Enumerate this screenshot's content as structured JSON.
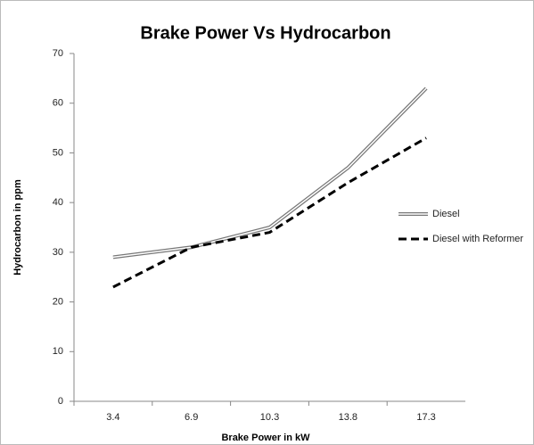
{
  "chart_data": {
    "type": "line",
    "title": "Brake Power Vs Hydrocarbon",
    "x_label": "Brake Power in kW",
    "y_label": "Hydrocarbon in ppm",
    "categories": [
      "3.4",
      "6.9",
      "10.3",
      "13.8",
      "17.3"
    ],
    "series": [
      {
        "name": "Diesel",
        "color": "#777777",
        "style": "double",
        "values": [
          29,
          31,
          35,
          47,
          63
        ]
      },
      {
        "name": "Diesel with Reformer",
        "color": "#000000",
        "style": "dashed",
        "values": [
          23,
          31,
          34,
          44,
          53
        ]
      }
    ],
    "ylim": [
      0,
      70
    ],
    "yticks": [
      0,
      10,
      20,
      30,
      40,
      50,
      60,
      70
    ],
    "grid": false,
    "legend": "right"
  }
}
